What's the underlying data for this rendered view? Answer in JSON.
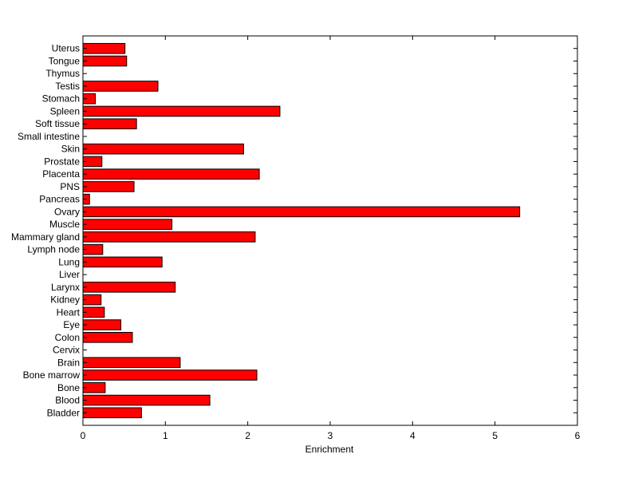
{
  "chart_data": {
    "type": "bar",
    "orientation": "horizontal",
    "title": "",
    "xlabel": "Enrichment",
    "ylabel": "",
    "xlim": [
      0,
      6
    ],
    "x_ticks": [
      0,
      1,
      2,
      3,
      4,
      5,
      6
    ],
    "grid": false,
    "legend": "none",
    "bar_color": "#ff0000",
    "bar_edge_color": "#000000",
    "categories": [
      "Bladder",
      "Blood",
      "Bone",
      "Bone marrow",
      "Brain",
      "Cervix",
      "Colon",
      "Eye",
      "Heart",
      "Kidney",
      "Larynx",
      "Liver",
      "Lung",
      "Lymph node",
      "Mammary gland",
      "Muscle",
      "Ovary",
      "Pancreas",
      "PNS",
      "Placenta",
      "Prostate",
      "Skin",
      "Small intestine",
      "Soft tissue",
      "Spleen",
      "Stomach",
      "Testis",
      "Thymus",
      "Tongue",
      "Uterus"
    ],
    "values": [
      0.71,
      1.54,
      0.27,
      2.11,
      1.18,
      0,
      0.6,
      0.46,
      0.26,
      0.22,
      1.12,
      0,
      0.96,
      0.24,
      2.09,
      1.08,
      5.3,
      0.08,
      0.62,
      2.14,
      0.23,
      1.95,
      0,
      0.65,
      2.39,
      0.15,
      0.91,
      0,
      0.53,
      0.51
    ]
  }
}
